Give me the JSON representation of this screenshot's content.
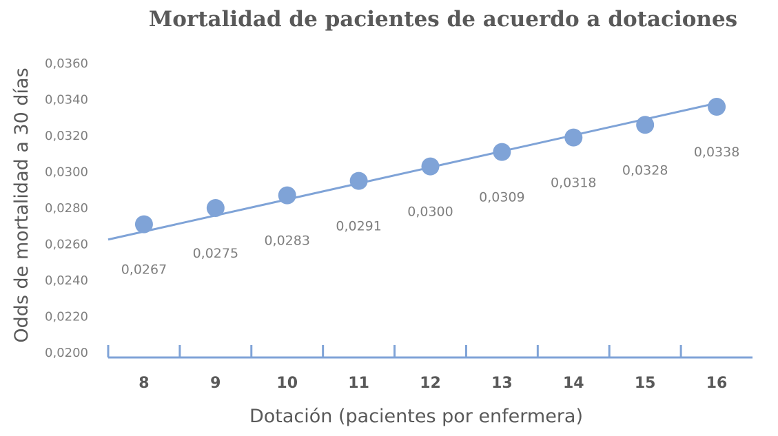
{
  "chart_data": {
    "type": "line",
    "title": "Mortalidad de pacientes de acuerdo a dotaciones",
    "xlabel": "Dotación (pacientes por enfermera)",
    "ylabel": "Odds de mortalidad a 30 días",
    "categories": [
      "8",
      "9",
      "10",
      "11",
      "12",
      "13",
      "14",
      "15",
      "16"
    ],
    "series": [
      {
        "values": [
          0.0271,
          0.028,
          0.0287,
          0.0295,
          0.0303,
          0.0311,
          0.0319,
          0.0326,
          0.0336
        ],
        "color": "#7fa3d7"
      }
    ],
    "trendline": {
      "values": [
        0.0267,
        0.0275,
        0.0283,
        0.0291,
        0.03,
        0.0309,
        0.0318,
        0.0328,
        0.0338
      ],
      "color": "#7fa3d7"
    },
    "data_labels": [
      "0,0267",
      "0,0275",
      "0,0283",
      "0,0291",
      "0,0300",
      "0,0309",
      "0,0318",
      "0,0328",
      "0,0338"
    ],
    "y_ticks": [
      "0,0200",
      "0,0220",
      "0,0240",
      "0,0260",
      "0,0280",
      "0,0300",
      "0,0320",
      "0,0340",
      "0,0360"
    ],
    "ylim": [
      0.02,
      0.036
    ],
    "grid": false,
    "axis_color": "#7fa3d7",
    "text_color": "#595959",
    "tick_color": "#7f7f7f"
  }
}
